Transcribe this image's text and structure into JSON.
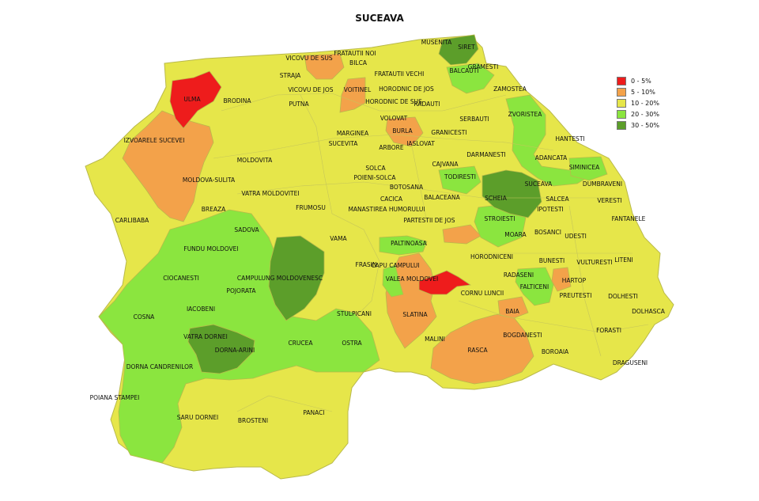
{
  "title": "SUCEAVA",
  "legend": [
    {
      "label": "0 - 5%",
      "color": "#ee1c1c"
    },
    {
      "label": "5 - 10%",
      "color": "#f3a24a"
    },
    {
      "label": "10 - 20%",
      "color": "#e6e64a"
    },
    {
      "label": "20 - 30%",
      "color": "#8be53f"
    },
    {
      "label": "30 - 50%",
      "color": "#5c9e2a"
    }
  ],
  "regions": [
    {
      "name": "MUSENITA",
      "class": 2
    },
    {
      "name": "SIRET",
      "class": 4
    },
    {
      "name": "FRATAUTII NOI",
      "class": 2
    },
    {
      "name": "VICOVU DE SUS",
      "class": 1
    },
    {
      "name": "BILCA",
      "class": 2
    },
    {
      "name": "GRAMESTI",
      "class": 3
    },
    {
      "name": "BALCAUTI",
      "class": 3
    },
    {
      "name": "FRATAUTII VECHI",
      "class": 2
    },
    {
      "name": "STRAJA",
      "class": 2
    },
    {
      "name": "VICOVU DE JOS",
      "class": 2
    },
    {
      "name": "VOITINEL",
      "class": 1
    },
    {
      "name": "HORODNIC DE JOS",
      "class": 2
    },
    {
      "name": "ZAMOSTEA",
      "class": 2
    },
    {
      "name": "ULMA",
      "class": 0
    },
    {
      "name": "BRODINA",
      "class": 2
    },
    {
      "name": "PUTNA",
      "class": 2
    },
    {
      "name": "HORODNIC DE SUS",
      "class": 2
    },
    {
      "name": "RADAUTI",
      "class": 2
    },
    {
      "name": "VOLOVAT",
      "class": 2
    },
    {
      "name": "SERBAUTI",
      "class": 2
    },
    {
      "name": "ZVORISTEA",
      "class": 3
    },
    {
      "name": "MARGINEA",
      "class": 2
    },
    {
      "name": "BURLA",
      "class": 1
    },
    {
      "name": "GRANICESTI",
      "class": 2
    },
    {
      "name": "HANTESTI",
      "class": 2
    },
    {
      "name": "IZVOARELE SUCEVEI",
      "class": 1
    },
    {
      "name": "SUCEVITA",
      "class": 2
    },
    {
      "name": "ARBORE",
      "class": 2
    },
    {
      "name": "IASLOVAT",
      "class": 2
    },
    {
      "name": "DARMANESTI",
      "class": 2
    },
    {
      "name": "ADANCATA",
      "class": 3
    },
    {
      "name": "MOLDOVITA",
      "class": 2
    },
    {
      "name": "CAJVANA",
      "class": 2
    },
    {
      "name": "SIMINICEA",
      "class": 3
    },
    {
      "name": "SOLCA",
      "class": 2
    },
    {
      "name": "TODIRESTI",
      "class": 3
    },
    {
      "name": "POIENI-SOLCA",
      "class": 2
    },
    {
      "name": "SUCEAVA",
      "class": 4
    },
    {
      "name": "DUMBRAVENI",
      "class": 2
    },
    {
      "name": "MOLDOVA-SULITA",
      "class": 1
    },
    {
      "name": "BOTOSANA",
      "class": 2
    },
    {
      "name": "SCHEIA",
      "class": 4
    },
    {
      "name": "VATRA MOLDOVITEI",
      "class": 2
    },
    {
      "name": "BALACEANA",
      "class": 2
    },
    {
      "name": "SALCEA",
      "class": 2
    },
    {
      "name": "VERESTI",
      "class": 2
    },
    {
      "name": "CACICA",
      "class": 2
    },
    {
      "name": "IPOTESTI",
      "class": 2
    },
    {
      "name": "FRUMOSU",
      "class": 2
    },
    {
      "name": "MANASTIREA HUMORULUI",
      "class": 2
    },
    {
      "name": "BREAZA",
      "class": 2
    },
    {
      "name": "STROIESTI",
      "class": 3
    },
    {
      "name": "CARLIBABA",
      "class": 2
    },
    {
      "name": "FANTANELE",
      "class": 2
    },
    {
      "name": "PARTESTII DE JOS",
      "class": 2
    },
    {
      "name": "SADOVA",
      "class": 3
    },
    {
      "name": "BOSANCI",
      "class": 2
    },
    {
      "name": "MOARA",
      "class": 3
    },
    {
      "name": "UDESTI",
      "class": 2
    },
    {
      "name": "VAMA",
      "class": 2
    },
    {
      "name": "PALTINOASA",
      "class": 3
    },
    {
      "name": "FUNDU MOLDOVEI",
      "class": 3
    },
    {
      "name": "BUNESTI",
      "class": 2
    },
    {
      "name": "HORODNICENI",
      "class": 2
    },
    {
      "name": "LITENI",
      "class": 2
    },
    {
      "name": "VULTURESTI",
      "class": 2
    },
    {
      "name": "FRASIN",
      "class": 2
    },
    {
      "name": "CAPU CAMPULUI",
      "class": 2
    },
    {
      "name": "CIOCANESTI",
      "class": 3
    },
    {
      "name": "CAMPULUNG MOLDOVENESC",
      "class": 4
    },
    {
      "name": "RADASENI",
      "class": 2
    },
    {
      "name": "HARTOP",
      "class": 1
    },
    {
      "name": "VALEA MOLDOVEI",
      "class": 0
    },
    {
      "name": "POJORATA",
      "class": 3
    },
    {
      "name": "FALTICENI",
      "class": 3
    },
    {
      "name": "CORNU LUNCII",
      "class": 2
    },
    {
      "name": "PREUTESTI",
      "class": 2
    },
    {
      "name": "DOLHESTI",
      "class": 2
    },
    {
      "name": "IACOBENI",
      "class": 3
    },
    {
      "name": "BAIA",
      "class": 1
    },
    {
      "name": "DOLHASCA",
      "class": 2
    },
    {
      "name": "COSNA",
      "class": 3
    },
    {
      "name": "STULPICANI",
      "class": 2
    },
    {
      "name": "SLATINA",
      "class": 1
    },
    {
      "name": "FORASTI",
      "class": 2
    },
    {
      "name": "VATRA DORNEI",
      "class": 4
    },
    {
      "name": "BOGDANESTI",
      "class": 2
    },
    {
      "name": "CRUCEA",
      "class": 3
    },
    {
      "name": "OSTRA",
      "class": 3
    },
    {
      "name": "MALINI",
      "class": 2
    },
    {
      "name": "DORNA-ARINI",
      "class": 4
    },
    {
      "name": "RASCA",
      "class": 1
    },
    {
      "name": "BOROAIA",
      "class": 2
    },
    {
      "name": "DRAGUSENI",
      "class": 2
    },
    {
      "name": "DORNA CANDRENILOR",
      "class": 3
    },
    {
      "name": "POIANA STAMPEI",
      "class": 3
    },
    {
      "name": "SARU DORNEI",
      "class": 2
    },
    {
      "name": "BROSTENI",
      "class": 2
    },
    {
      "name": "PANACI",
      "class": 2
    }
  ]
}
